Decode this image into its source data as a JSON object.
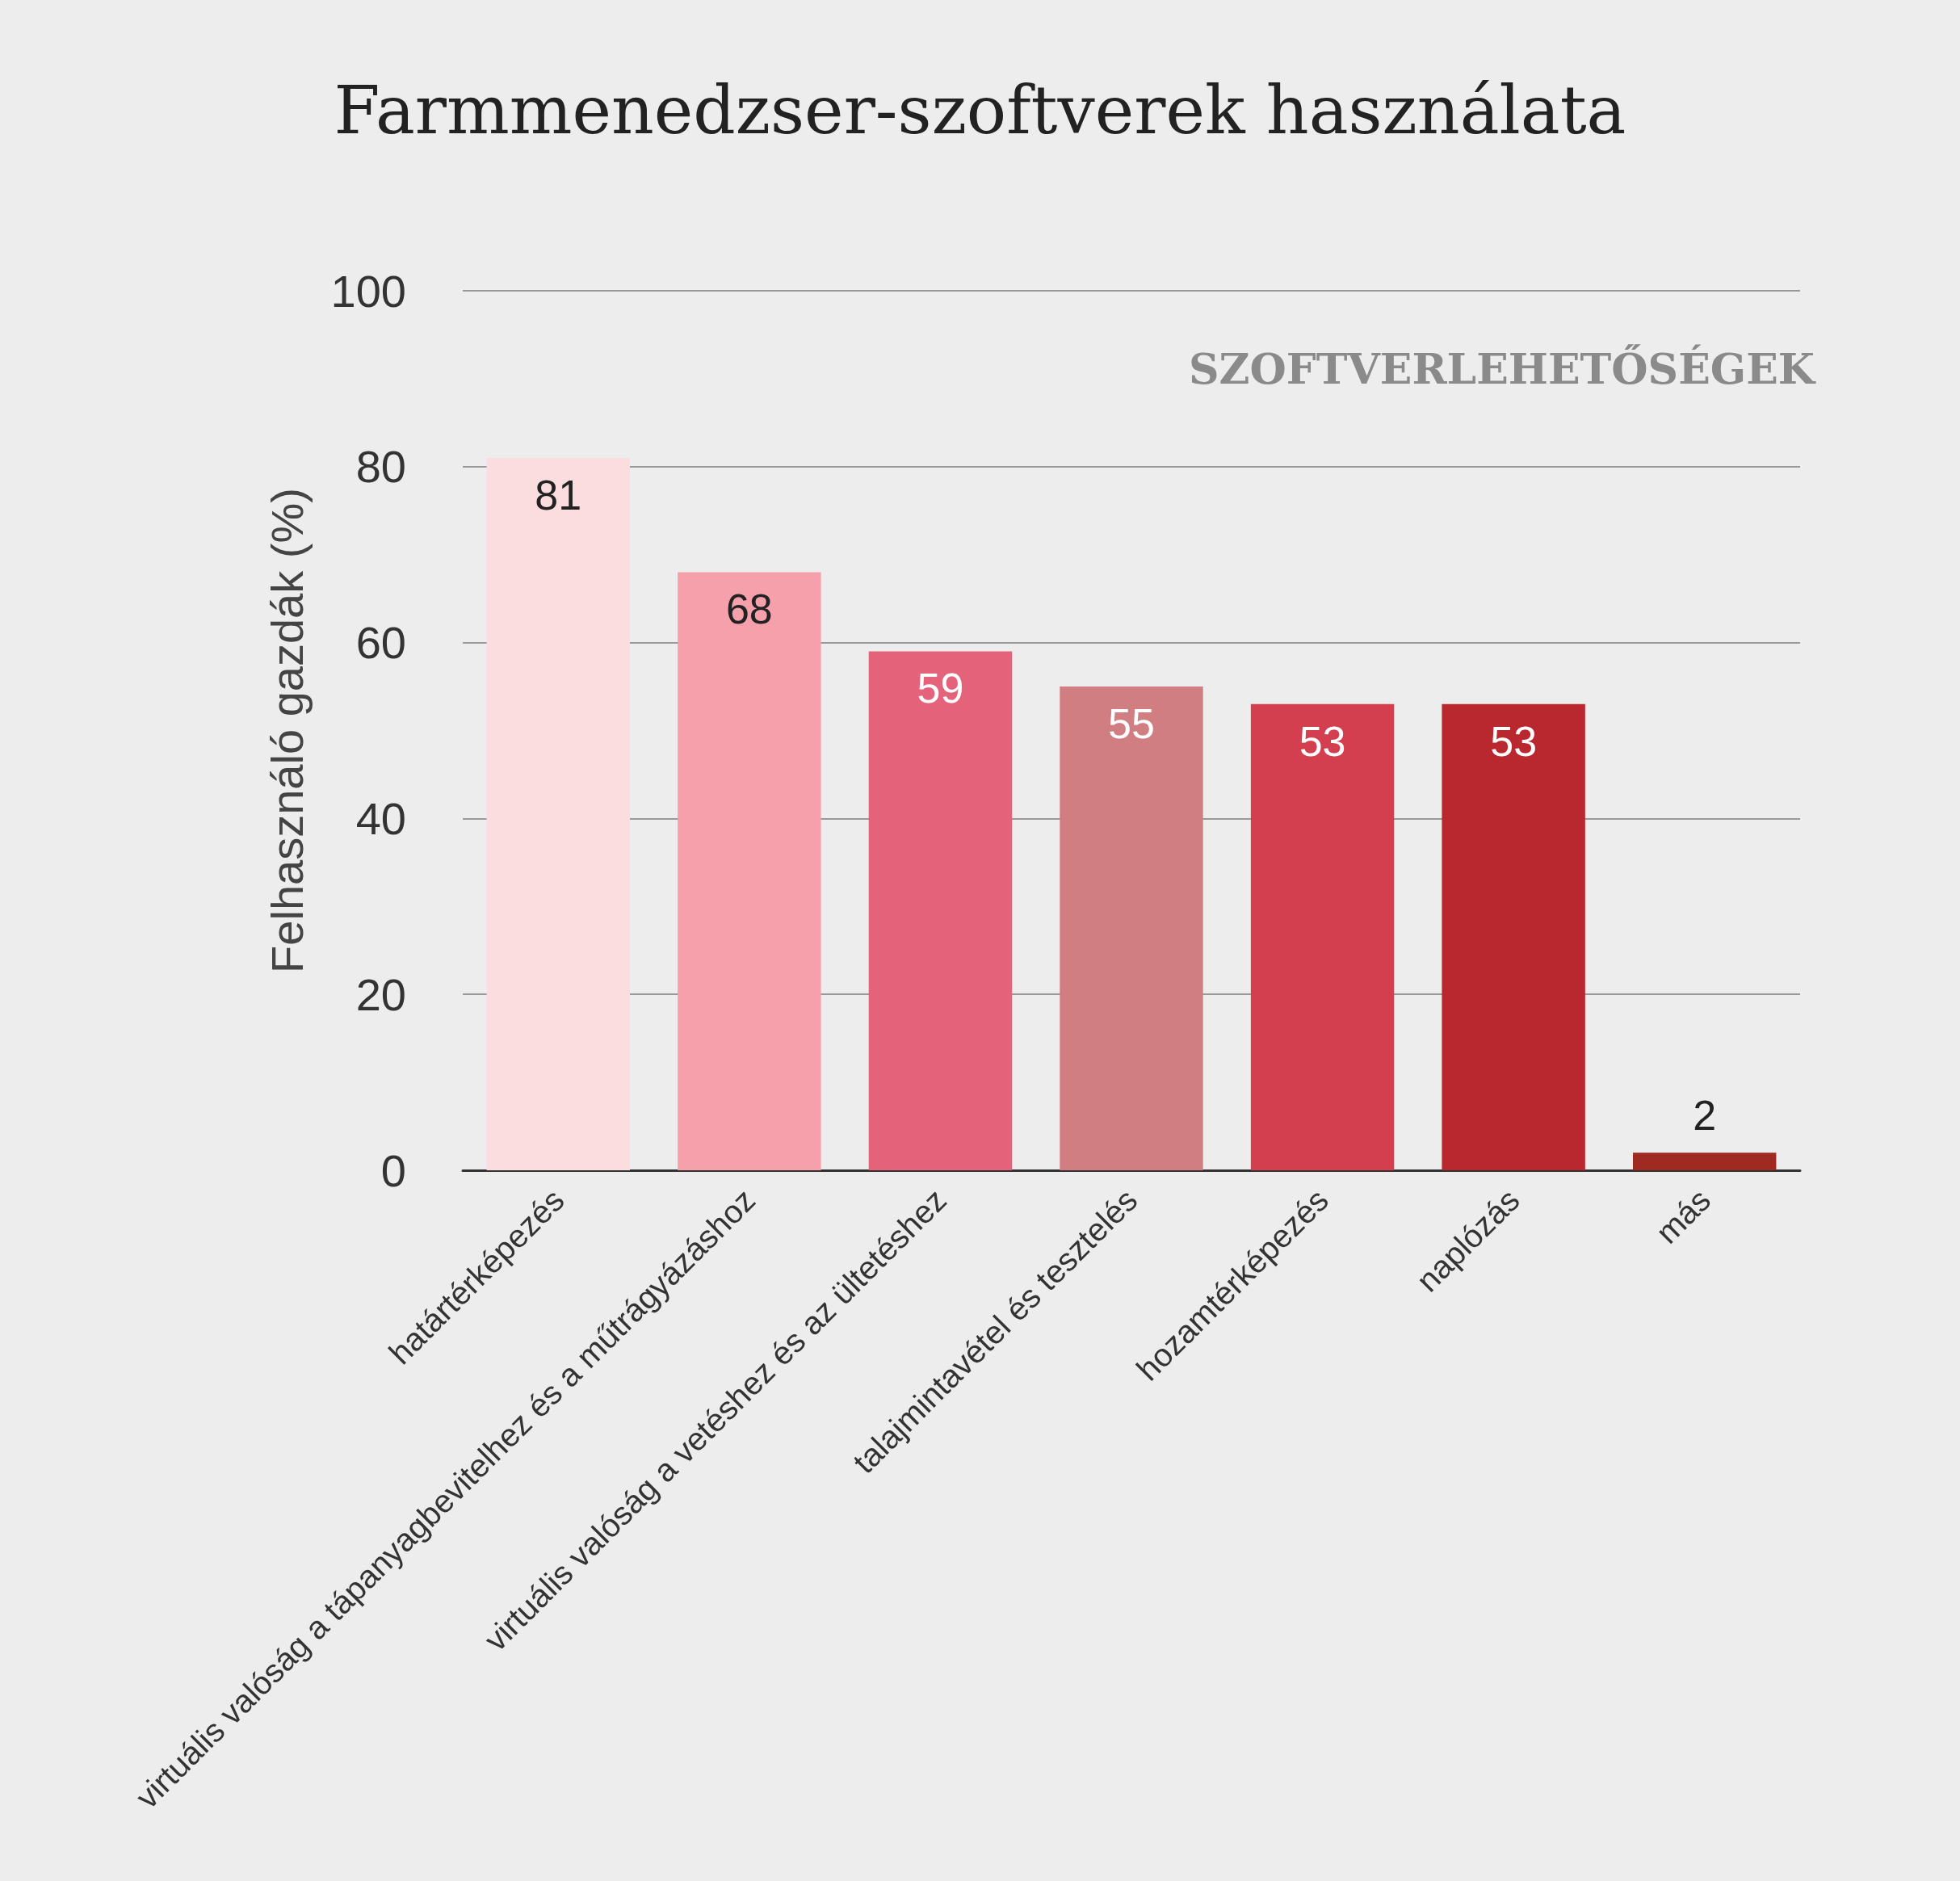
{
  "chart_data": {
    "type": "bar",
    "title": "Farmmenedzser-szoftverek használata",
    "xlabel": "SZOFTVERLEHETŐSÉGEK",
    "ylabel": "Felhasználó gazdák (%)",
    "categories": [
      "határtérképezés",
      "virtuális valóság a tápanyagbevitelhez és a műtrágyázáshoz",
      "virtuális valóság a vetéshez és az ültetéshez",
      "talajmintavétel és tesztelés",
      "hozamtérképezés",
      "naplózás",
      "más"
    ],
    "values": [
      81,
      68,
      59,
      55,
      53,
      53,
      2
    ],
    "colors": [
      "#fbdde0",
      "#f6a0ab",
      "#e5637a",
      "#d17e83",
      "#d33f4e",
      "#b9282f",
      "#9e2a22"
    ],
    "ylim": [
      0,
      100
    ],
    "yticks": [
      0,
      20,
      40,
      60,
      80,
      100
    ],
    "grid": "y",
    "data_labels": true
  }
}
